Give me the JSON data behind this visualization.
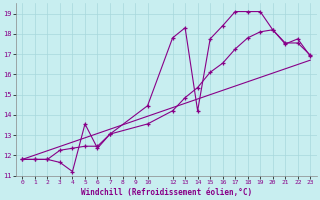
{
  "background_color": "#c8eef0",
  "grid_color": "#a8d8dc",
  "line_color": "#880088",
  "xlabel": "Windchill (Refroidissement éolien,°C)",
  "xlim": [
    -0.5,
    23.5
  ],
  "ylim": [
    11,
    19.5
  ],
  "yticks": [
    11,
    12,
    13,
    14,
    15,
    16,
    17,
    18,
    19
  ],
  "xticks": [
    0,
    1,
    2,
    3,
    4,
    5,
    6,
    7,
    8,
    9,
    10,
    12,
    13,
    14,
    15,
    16,
    17,
    18,
    19,
    20,
    21,
    22,
    23
  ],
  "line1_x": [
    0,
    1,
    2,
    3,
    4,
    5,
    6,
    7,
    10,
    12,
    13,
    14,
    15,
    16,
    17,
    18,
    19,
    20,
    21,
    22,
    23
  ],
  "line1_y": [
    11.8,
    11.8,
    11.8,
    11.65,
    11.2,
    13.55,
    12.35,
    13.05,
    14.45,
    17.8,
    18.3,
    14.2,
    17.75,
    18.4,
    19.1,
    19.1,
    19.1,
    18.2,
    17.5,
    17.75,
    16.9
  ],
  "line2_x": [
    0,
    1,
    2,
    3,
    4,
    5,
    6,
    7,
    10,
    12,
    13,
    14,
    15,
    16,
    17,
    18,
    19,
    20,
    21,
    22,
    23
  ],
  "line2_y": [
    11.8,
    11.8,
    11.8,
    12.25,
    12.35,
    12.45,
    12.45,
    13.05,
    13.55,
    14.2,
    14.85,
    15.35,
    16.1,
    16.55,
    17.25,
    17.8,
    18.1,
    18.2,
    17.55,
    17.55,
    16.95
  ],
  "line3_x": [
    0,
    23
  ],
  "line3_y": [
    11.8,
    16.7
  ]
}
